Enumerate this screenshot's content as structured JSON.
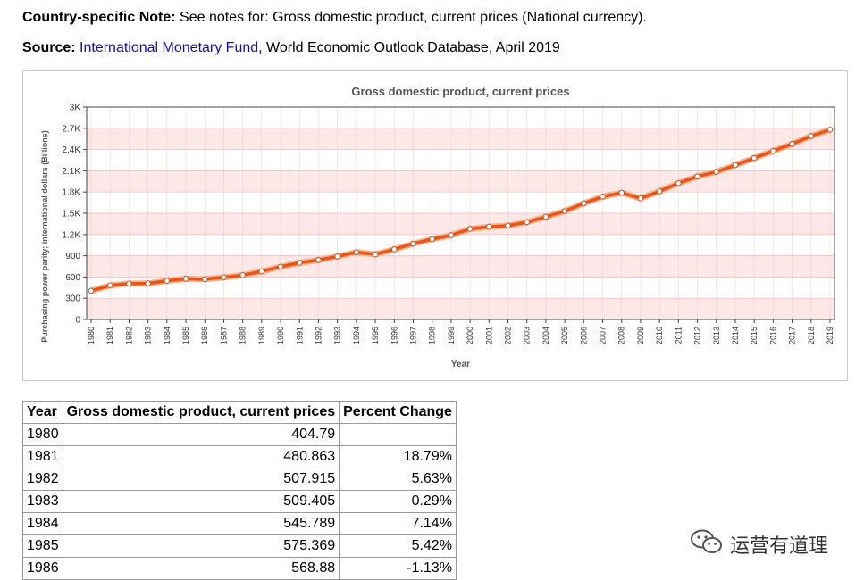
{
  "note": {
    "label": "Country-specific Note:",
    "text": " See notes for: Gross domestic product, current prices (National currency)."
  },
  "source": {
    "label": "Source:",
    "link_text": "International Monetary Fund",
    "text": ", World Economic Outlook Database, April 2019"
  },
  "chart_data": {
    "type": "line",
    "title": "Gross domestic product, current prices",
    "xlabel": "Year",
    "ylabel": "Purchasing power parity; international dollars (Billions)",
    "ylim": [
      0,
      3000
    ],
    "yticks": [
      0,
      300,
      600,
      900,
      1200,
      1500,
      1800,
      2100,
      2400,
      2700,
      3000
    ],
    "ytick_labels": [
      "0",
      "300",
      "600",
      "900",
      "1.2K",
      "1.5K",
      "1.8K",
      "2.1K",
      "2.4K",
      "2.7K",
      "3K"
    ],
    "grid": true,
    "line_color": "#e8541a",
    "x": [
      "1980",
      "1981",
      "1982",
      "1983",
      "1984",
      "1985",
      "1986",
      "1987",
      "1988",
      "1989",
      "1990",
      "1991",
      "1992",
      "1993",
      "1994",
      "1995",
      "1996",
      "1997",
      "1998",
      "1999",
      "2000",
      "2001",
      "2002",
      "2003",
      "2004",
      "2005",
      "2006",
      "2007",
      "2008",
      "2009",
      "2010",
      "2011",
      "2012",
      "2013",
      "2014",
      "2015",
      "2016",
      "2017",
      "2018",
      "2019"
    ],
    "series": [
      {
        "values": [
          404.79,
          480.863,
          507.915,
          509.405,
          545.789,
          575.369,
          568.88,
          595,
          625,
          680,
          745,
          800,
          840,
          890,
          950,
          920,
          990,
          1070,
          1135,
          1190,
          1280,
          1310,
          1325,
          1375,
          1450,
          1530,
          1640,
          1735,
          1790,
          1710,
          1810,
          1925,
          2020,
          2085,
          2180,
          2280,
          2380,
          2480,
          2590,
          2680
        ]
      }
    ]
  },
  "table": {
    "headers": [
      "Year",
      "Gross domestic product, current prices",
      "Percent Change"
    ],
    "rows": [
      [
        "1980",
        "404.79",
        ""
      ],
      [
        "1981",
        "480.863",
        "18.79%"
      ],
      [
        "1982",
        "507.915",
        "5.63%"
      ],
      [
        "1983",
        "509.405",
        "0.29%"
      ],
      [
        "1984",
        "545.789",
        "7.14%"
      ],
      [
        "1985",
        "575.369",
        "5.42%"
      ],
      [
        "1986",
        "568.88",
        "-1.13%"
      ]
    ]
  },
  "watermark": {
    "icon": "wechat-icon",
    "text": "运营有道理"
  }
}
